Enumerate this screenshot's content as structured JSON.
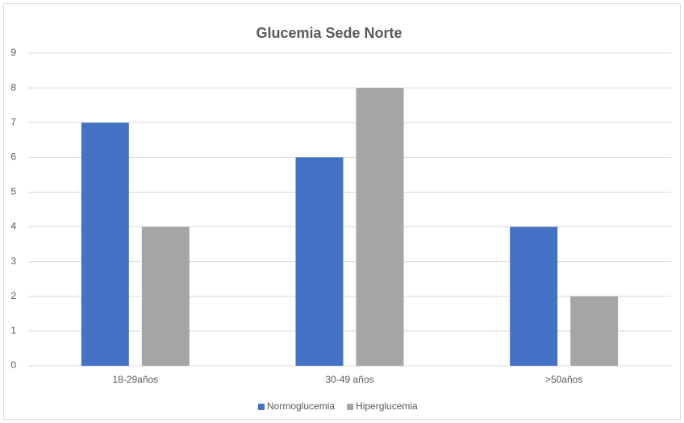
{
  "chart_data": {
    "type": "bar",
    "title": "Glucemia Sede Norte",
    "categories": [
      "18-29años",
      "30-49 años",
      ">50años"
    ],
    "series": [
      {
        "name": "Normoglucemia",
        "color": "#4472c4",
        "values": [
          7,
          6,
          4
        ]
      },
      {
        "name": "Hiperglucemia",
        "color": "#a5a5a5",
        "values": [
          4,
          8,
          2
        ]
      }
    ],
    "ylim": [
      0,
      9
    ],
    "yticks": [
      0,
      1,
      2,
      3,
      4,
      5,
      6,
      7,
      8,
      9
    ],
    "grid": true,
    "legend": "bottom"
  }
}
